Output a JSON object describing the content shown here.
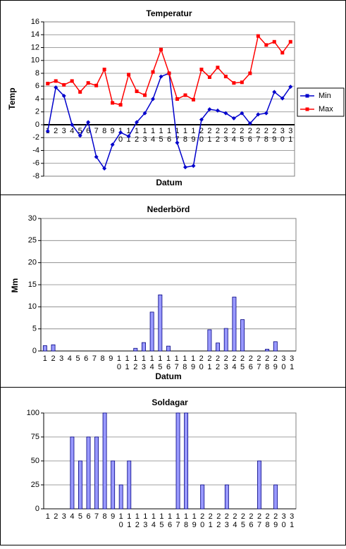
{
  "chart_data": [
    {
      "type": "line",
      "title": "Temperatur",
      "x_label": "Datum",
      "y_label": "Temp",
      "categories": [
        "1",
        "2",
        "3",
        "4",
        "5",
        "6",
        "7",
        "8",
        "9",
        "10",
        "11",
        "12",
        "13",
        "14",
        "15",
        "16",
        "17",
        "18",
        "19",
        "20",
        "21",
        "22",
        "23",
        "24",
        "25",
        "26",
        "27",
        "28",
        "29",
        "30",
        "31"
      ],
      "series": [
        {
          "name": "Min",
          "color": "#0000cc",
          "values": [
            -1,
            5.8,
            4.5,
            0,
            -1.7,
            0.4,
            -5,
            -6.8,
            -3.1,
            -1.2,
            -1.8,
            0.4,
            1.8,
            4,
            7.5,
            8,
            -2.8,
            -6.6,
            -6.4,
            0.8,
            2.4,
            2.2,
            1.8,
            1,
            1.8,
            0.2,
            1.6,
            1.8,
            5.1,
            4.1,
            5.9
          ]
        },
        {
          "name": "Max",
          "color": "#ff0000",
          "values": [
            6.4,
            6.8,
            6.2,
            6.8,
            5.1,
            6.5,
            6.1,
            8.6,
            3.4,
            3.1,
            7.8,
            5.2,
            4.6,
            8.2,
            11.7,
            8,
            4,
            4.6,
            3.9,
            8.6,
            7.4,
            8.9,
            7.5,
            6.5,
            6.6,
            8,
            13.8,
            12.4,
            12.9,
            11.2,
            12.9
          ]
        }
      ],
      "ylim": [
        -8,
        16
      ],
      "yticks": [
        -8,
        -6,
        -4,
        -2,
        0,
        2,
        4,
        6,
        8,
        10,
        12,
        14,
        16
      ],
      "grid": true,
      "legend": "right"
    },
    {
      "type": "bar",
      "title": "Nederbörd",
      "x_label": "Datum",
      "y_label": "Mm",
      "color": "#9999ff",
      "categories": [
        "1",
        "2",
        "3",
        "4",
        "5",
        "6",
        "7",
        "8",
        "9",
        "10",
        "11",
        "12",
        "13",
        "14",
        "15",
        "16",
        "17",
        "18",
        "19",
        "20",
        "21",
        "22",
        "23",
        "24",
        "25",
        "26",
        "27",
        "28",
        "29",
        "30",
        "31"
      ],
      "values": [
        1.2,
        1.4,
        0,
        0,
        0,
        0,
        0,
        0,
        0,
        0,
        0,
        0.6,
        1.9,
        8.8,
        12.7,
        1.1,
        0,
        0,
        0,
        0,
        4.8,
        1.8,
        5.1,
        12.2,
        7.1,
        0,
        0,
        0.4,
        2.1,
        0,
        0
      ],
      "ylim": [
        0,
        30
      ],
      "yticks": [
        0,
        5,
        10,
        15,
        20,
        25,
        30
      ],
      "grid": true
    },
    {
      "type": "bar",
      "title": "Soldagar",
      "color": "#9999ff",
      "categories": [
        "1",
        "2",
        "3",
        "4",
        "5",
        "6",
        "7",
        "8",
        "9",
        "10",
        "11",
        "12",
        "13",
        "14",
        "15",
        "16",
        "17",
        "18",
        "19",
        "20",
        "21",
        "22",
        "23",
        "24",
        "25",
        "26",
        "27",
        "28",
        "29",
        "30",
        "31"
      ],
      "values": [
        0,
        0,
        0,
        75,
        50,
        75,
        75,
        100,
        50,
        25,
        50,
        0,
        0,
        0,
        0,
        0,
        100,
        100,
        0,
        25,
        0,
        0,
        25,
        0,
        0,
        0,
        50,
        0,
        25,
        0,
        0
      ],
      "ylim": [
        0,
        100
      ],
      "yticks": [
        0,
        25,
        50,
        75,
        100
      ],
      "grid": true
    }
  ]
}
